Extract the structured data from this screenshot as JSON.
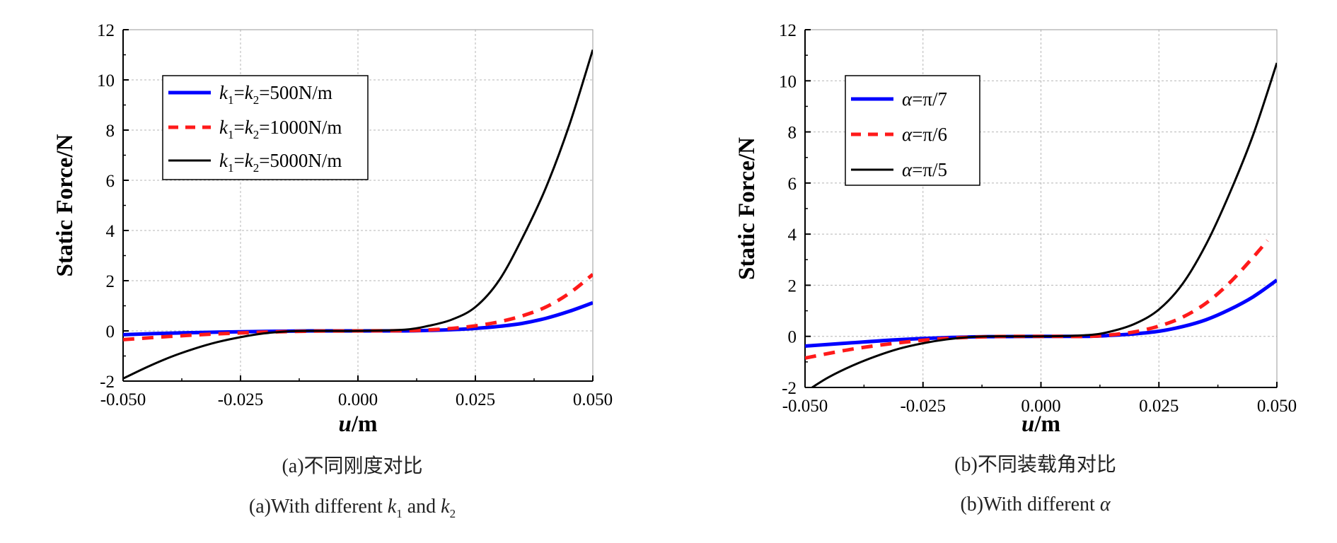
{
  "chart_data": [
    {
      "type": "line",
      "ylabel": "Static Force/N",
      "xlabel_italic": "u",
      "xlabel_rest": "/m",
      "xlim": [
        -0.05,
        0.05
      ],
      "ylim": [
        -2,
        12
      ],
      "xticks": [
        "-0.050",
        "-0.025",
        "0.000",
        "0.025",
        "0.050"
      ],
      "yticks": [
        "-2",
        "0",
        "2",
        "4",
        "6",
        "8",
        "10",
        "12"
      ],
      "grid": true,
      "legend_position": "top-left",
      "caption_cn": "(a)不同刚度对比",
      "caption_en_pre": "(a)With different ",
      "caption_en_k": "k",
      "caption_en_sub1": "1",
      "caption_en_mid": " and ",
      "caption_en_sub2": "2",
      "series": [
        {
          "legend": {
            "k": "k",
            "s1": "1",
            "eq": "=",
            "s2": "2",
            "val": "=500N/m"
          },
          "color": "#0000ff",
          "style": "solid",
          "width": 5,
          "x": [
            -0.05,
            -0.04,
            -0.03,
            -0.02,
            -0.01,
            0.0,
            0.01,
            0.015,
            0.02,
            0.025,
            0.03,
            0.035,
            0.04,
            0.045,
            0.05
          ],
          "y": [
            -0.15,
            -0.09,
            -0.05,
            -0.02,
            0.0,
            0.0,
            0.0,
            0.02,
            0.05,
            0.1,
            0.18,
            0.3,
            0.5,
            0.78,
            1.12
          ]
        },
        {
          "legend": {
            "k": "k",
            "s1": "1",
            "eq": "=",
            "s2": "2",
            "val": "=1000N/m"
          },
          "color": "#ff1a1a",
          "style": "dashed",
          "width": 5,
          "x": [
            -0.05,
            -0.04,
            -0.03,
            -0.02,
            -0.01,
            0.0,
            0.01,
            0.015,
            0.02,
            0.025,
            0.03,
            0.035,
            0.04,
            0.045,
            0.05
          ],
          "y": [
            -0.35,
            -0.22,
            -0.12,
            -0.05,
            -0.01,
            0.0,
            0.01,
            0.04,
            0.1,
            0.2,
            0.36,
            0.6,
            0.95,
            1.5,
            2.25
          ]
        },
        {
          "legend": {
            "k": "k",
            "s1": "1",
            "eq": "=",
            "s2": "2",
            "val": "=5000N/m"
          },
          "color": "#000000",
          "style": "solid",
          "width": 3,
          "x": [
            -0.05,
            -0.045,
            -0.04,
            -0.035,
            -0.03,
            -0.025,
            -0.02,
            -0.015,
            -0.01,
            0.0,
            0.01,
            0.015,
            0.02,
            0.025,
            0.03,
            0.035,
            0.04,
            0.045,
            0.05
          ],
          "y": [
            -1.9,
            -1.45,
            -1.05,
            -0.72,
            -0.45,
            -0.25,
            -0.1,
            -0.02,
            0.0,
            0.0,
            0.05,
            0.2,
            0.45,
            0.95,
            2.0,
            3.7,
            5.7,
            8.2,
            11.2
          ]
        }
      ]
    },
    {
      "type": "line",
      "ylabel": "Static Force/N",
      "xlabel_italic": "u",
      "xlabel_rest": "/m",
      "xlim": [
        -0.05,
        0.05
      ],
      "ylim": [
        -2,
        12
      ],
      "xticks": [
        "-0.050",
        "-0.025",
        "0.000",
        "0.025",
        "0.050"
      ],
      "yticks": [
        "-2",
        "0",
        "2",
        "4",
        "6",
        "8",
        "10",
        "12"
      ],
      "grid": true,
      "legend_position": "top-left",
      "caption_cn": "(b)不同装载角对比",
      "caption_en_pre": "(b)With different ",
      "caption_en_alpha": "α",
      "series": [
        {
          "legend": {
            "alpha": "α",
            "val": "=π/7"
          },
          "color": "#0000ff",
          "style": "solid",
          "width": 5,
          "x": [
            -0.05,
            -0.04,
            -0.03,
            -0.02,
            -0.01,
            0.0,
            0.01,
            0.015,
            0.02,
            0.025,
            0.03,
            0.035,
            0.04,
            0.045,
            0.05
          ],
          "y": [
            -0.38,
            -0.25,
            -0.13,
            -0.05,
            -0.01,
            0.0,
            0.0,
            0.04,
            0.1,
            0.2,
            0.38,
            0.65,
            1.05,
            1.55,
            2.2
          ]
        },
        {
          "legend": {
            "alpha": "α",
            "val": "=π/6"
          },
          "color": "#ff1a1a",
          "style": "dashed",
          "width": 5,
          "x": [
            -0.05,
            -0.04,
            -0.03,
            -0.02,
            -0.01,
            0.0,
            0.01,
            0.015,
            0.02,
            0.025,
            0.03,
            0.035,
            0.04,
            0.045,
            0.048
          ],
          "y": [
            -0.85,
            -0.5,
            -0.25,
            -0.08,
            -0.01,
            0.0,
            0.0,
            0.06,
            0.18,
            0.4,
            0.75,
            1.3,
            2.1,
            3.1,
            3.75
          ]
        },
        {
          "legend": {
            "alpha": "α",
            "val": "=π/5"
          },
          "color": "#000000",
          "style": "solid",
          "width": 3,
          "x": [
            -0.0485,
            -0.045,
            -0.04,
            -0.035,
            -0.03,
            -0.025,
            -0.02,
            -0.015,
            -0.01,
            0.0,
            0.01,
            0.015,
            0.02,
            0.025,
            0.03,
            0.035,
            0.04,
            0.045,
            0.05
          ],
          "y": [
            -2.0,
            -1.6,
            -1.15,
            -0.78,
            -0.48,
            -0.27,
            -0.12,
            -0.03,
            0.0,
            0.0,
            0.05,
            0.2,
            0.5,
            1.05,
            2.05,
            3.6,
            5.6,
            7.9,
            10.7
          ]
        }
      ]
    }
  ]
}
